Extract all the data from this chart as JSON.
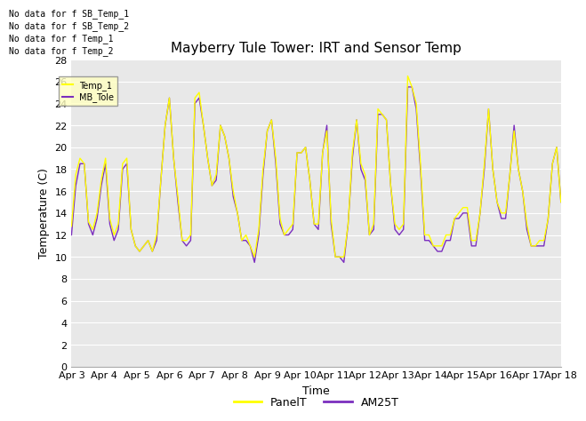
{
  "title": "Mayberry Tule Tower: IRT and Sensor Temp",
  "ylabel": "Temperature (C)",
  "xlabel": "Time",
  "ylim": [
    0,
    28
  ],
  "yticks": [
    0,
    2,
    4,
    6,
    8,
    10,
    12,
    14,
    16,
    18,
    20,
    22,
    24,
    26,
    28
  ],
  "xtick_labels": [
    "Apr 3",
    "Apr 4",
    "Apr 5",
    "Apr 6",
    "Apr 7",
    "Apr 8",
    "Apr 9",
    "Apr 10",
    "Apr 11",
    "Apr 12",
    "Apr 13",
    "Apr 14",
    "Apr 15",
    "Apr 16",
    "Apr 17",
    "Apr 18"
  ],
  "panel_color": "#ffff00",
  "am25_color": "#7b2fbe",
  "bg_color": "#e8e8e8",
  "no_data_lines": [
    "No data for f SB_Temp_1",
    "No data for f SB_Temp_2",
    "No data for f Temp_1",
    "No data for f Temp_2"
  ],
  "legend_items": [
    "PanelT",
    "AM25T"
  ],
  "tooltip_labels": [
    "Temp_1",
    "MB_Tole"
  ],
  "panel_data": [
    12.8,
    17.5,
    19.0,
    18.5,
    13.2,
    12.5,
    14.0,
    17.0,
    19.0,
    13.5,
    12.0,
    13.0,
    18.5,
    19.0,
    12.5,
    11.0,
    10.5,
    11.0,
    11.5,
    10.5,
    12.0,
    17.0,
    22.0,
    24.5,
    19.0,
    15.5,
    11.5,
    11.5,
    12.0,
    24.5,
    25.0,
    22.0,
    19.0,
    16.5,
    17.5,
    22.0,
    21.0,
    19.0,
    16.0,
    14.0,
    11.5,
    12.0,
    11.0,
    10.0,
    12.5,
    18.0,
    21.5,
    22.5,
    19.0,
    13.5,
    12.0,
    12.5,
    13.0,
    19.5,
    19.5,
    20.0,
    17.0,
    13.0,
    13.0,
    19.5,
    21.5,
    13.5,
    10.0,
    10.0,
    10.0,
    13.0,
    19.5,
    22.5,
    18.5,
    17.5,
    12.0,
    13.0,
    23.5,
    23.0,
    22.5,
    16.5,
    13.0,
    12.5,
    13.0,
    26.5,
    25.5,
    24.0,
    18.5,
    12.0,
    12.0,
    11.0,
    11.0,
    11.0,
    12.0,
    12.0,
    13.5,
    14.0,
    14.5,
    14.5,
    11.5,
    11.5,
    14.0,
    18.5,
    23.5,
    18.0,
    15.0,
    14.0,
    14.0,
    17.5,
    21.5,
    18.0,
    16.0,
    13.0,
    11.0,
    11.0,
    11.5,
    11.5,
    13.5,
    18.5,
    20.0,
    15.0
  ],
  "am25_data": [
    12.0,
    16.5,
    18.5,
    18.5,
    13.0,
    12.0,
    13.5,
    16.5,
    18.5,
    13.0,
    11.5,
    12.5,
    18.0,
    18.5,
    12.5,
    11.0,
    10.5,
    11.0,
    11.5,
    10.5,
    11.5,
    17.0,
    22.0,
    24.5,
    19.0,
    15.0,
    11.5,
    11.0,
    11.5,
    24.0,
    24.5,
    22.0,
    19.0,
    16.5,
    17.0,
    22.0,
    21.0,
    19.0,
    15.5,
    14.0,
    11.5,
    11.5,
    11.0,
    9.5,
    12.0,
    17.5,
    21.5,
    22.5,
    18.5,
    13.0,
    12.0,
    12.0,
    12.5,
    19.5,
    19.5,
    20.0,
    17.0,
    13.0,
    12.5,
    19.5,
    22.0,
    13.0,
    10.0,
    10.0,
    9.5,
    13.0,
    19.0,
    22.5,
    18.0,
    17.0,
    12.0,
    12.5,
    23.0,
    23.0,
    22.5,
    16.5,
    12.5,
    12.0,
    12.5,
    25.5,
    25.5,
    23.5,
    18.0,
    11.5,
    11.5,
    11.0,
    10.5,
    10.5,
    11.5,
    11.5,
    13.5,
    13.5,
    14.0,
    14.0,
    11.0,
    11.0,
    14.0,
    18.0,
    23.5,
    18.0,
    15.0,
    13.5,
    13.5,
    17.5,
    22.0,
    18.0,
    16.0,
    12.5,
    11.0,
    11.0,
    11.0,
    11.0,
    13.5,
    18.5,
    20.0,
    15.0
  ]
}
